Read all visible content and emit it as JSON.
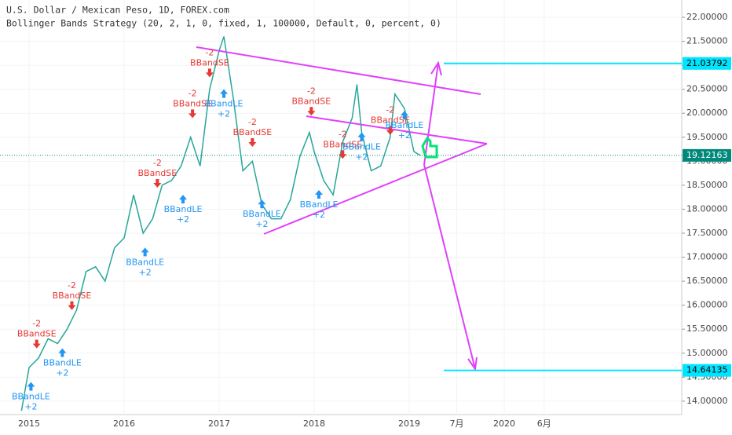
{
  "chart_data": {
    "type": "line",
    "title": "U.S. Dollar / Mexican Peso, 1D, FOREX.com",
    "subtitle": "Bollinger Bands Strategy (20, 2, 1, 0, fixed, 1, 100000, Default, 0, percent, 0)",
    "color": "#26a69a",
    "x": [
      2014.92,
      2015.0,
      2015.1,
      2015.2,
      2015.3,
      2015.4,
      2015.5,
      2015.6,
      2015.7,
      2015.8,
      2015.9,
      2016.0,
      2016.1,
      2016.2,
      2016.3,
      2016.4,
      2016.5,
      2016.6,
      2016.7,
      2016.8,
      2016.9,
      2017.0,
      2017.05,
      2017.15,
      2017.25,
      2017.35,
      2017.45,
      2017.55,
      2017.65,
      2017.75,
      2017.85,
      2017.95,
      2018.0,
      2018.1,
      2018.2,
      2018.3,
      2018.4,
      2018.45,
      2018.5,
      2018.6,
      2018.7,
      2018.8,
      2018.85,
      2018.95,
      2019.05,
      2019.12
    ],
    "values": [
      13.8,
      14.7,
      14.9,
      15.3,
      15.2,
      15.5,
      15.9,
      16.7,
      16.8,
      16.5,
      17.2,
      17.4,
      18.3,
      17.5,
      17.8,
      18.5,
      18.6,
      18.9,
      19.5,
      18.9,
      20.5,
      21.3,
      21.6,
      20.3,
      18.8,
      19.0,
      18.1,
      17.8,
      17.8,
      18.2,
      19.1,
      19.6,
      19.2,
      18.6,
      18.3,
      19.4,
      19.9,
      20.6,
      19.6,
      18.8,
      18.9,
      19.5,
      20.4,
      20.1,
      19.2,
      19.12
    ],
    "xlim": [
      2014.694,
      2021.868
    ],
    "ylim": [
      13.72,
      22.36
    ],
    "xticks": [
      2015,
      2016,
      2017,
      2018,
      2019,
      {
        "value": 2019.5,
        "label": "7月"
      },
      2020,
      {
        "value": 2020.42,
        "label": "6月"
      }
    ],
    "yticks": [
      {
        "value": 14,
        "label": "14.00000"
      },
      {
        "value": 14.5,
        "label": "14.50000"
      },
      {
        "value": 15,
        "label": "15.00000"
      },
      {
        "value": 15.5,
        "label": "15.50000"
      },
      {
        "value": 16,
        "label": "16.00000"
      },
      {
        "value": 16.5,
        "label": "16.50000"
      },
      {
        "value": 17,
        "label": "17.00000"
      },
      {
        "value": 17.5,
        "label": "17.50000"
      },
      {
        "value": 18,
        "label": "18.00000"
      },
      {
        "value": 18.5,
        "label": "18.50000"
      },
      {
        "value": 19,
        "label": "19.00000"
      },
      {
        "value": 19.5,
        "label": "19.50000"
      },
      {
        "value": 20,
        "label": "20.00000"
      },
      {
        "value": 20.5,
        "label": "20.50000"
      },
      {
        "value": 21,
        "label": "21.00000"
      },
      {
        "value": 21.5,
        "label": "21.50000"
      },
      {
        "value": 22,
        "label": "22.00000"
      }
    ],
    "levels": [
      {
        "value": 21.03792,
        "color": "#00e5ff"
      },
      {
        "value": 14.64135,
        "color": "#00e5ff"
      },
      {
        "value": 19.12163,
        "color": "#00897b"
      }
    ],
    "le_color": "#2196f3",
    "se_color": "#e53935",
    "signals": [
      {
        "x": 2015.02,
        "price": 14.4,
        "name": "BBandLE",
        "qty": "+2"
      },
      {
        "x": 2015.08,
        "price": 15.1,
        "name": "BBandSE",
        "qty": "-2"
      },
      {
        "x": 2015.35,
        "price": 15.1,
        "name": "BBandLE",
        "qty": "+2"
      },
      {
        "x": 2015.45,
        "price": 15.9,
        "name": "BBandSE",
        "qty": "-2"
      },
      {
        "x": 2016.22,
        "price": 17.2,
        "name": "BBandLE",
        "qty": "+2"
      },
      {
        "x": 2016.35,
        "price": 18.45,
        "name": "BBandSE",
        "qty": "-2"
      },
      {
        "x": 2016.62,
        "price": 18.3,
        "name": "BBandLE",
        "qty": "+2"
      },
      {
        "x": 2016.72,
        "price": 19.9,
        "name": "BBandSE",
        "qty": "-2"
      },
      {
        "x": 2016.9,
        "price": 20.75,
        "name": "BBandSE",
        "qty": "-2"
      },
      {
        "x": 2017.05,
        "price": 20.5,
        "name": "BBandLE",
        "qty": "+2"
      },
      {
        "x": 2017.35,
        "price": 19.3,
        "name": "BBandSE",
        "qty": "-2"
      },
      {
        "x": 2017.45,
        "price": 18.2,
        "name": "BBandLE",
        "qty": "+2"
      },
      {
        "x": 2017.97,
        "price": 19.95,
        "name": "BBandSE",
        "qty": "-2"
      },
      {
        "x": 2018.05,
        "price": 18.4,
        "name": "BBandLE",
        "qty": "+2"
      },
      {
        "x": 2018.3,
        "price": 19.05,
        "name": "BBandSE",
        "qty": "-2"
      },
      {
        "x": 2018.5,
        "price": 19.6,
        "name": "BBandLE",
        "qty": "+2"
      },
      {
        "x": 2018.8,
        "price": 19.55,
        "name": "BBandSE",
        "qty": "-2"
      },
      {
        "x": 2018.95,
        "price": 20.05,
        "name": "BBandLE",
        "qty": "+2"
      }
    ]
  }
}
